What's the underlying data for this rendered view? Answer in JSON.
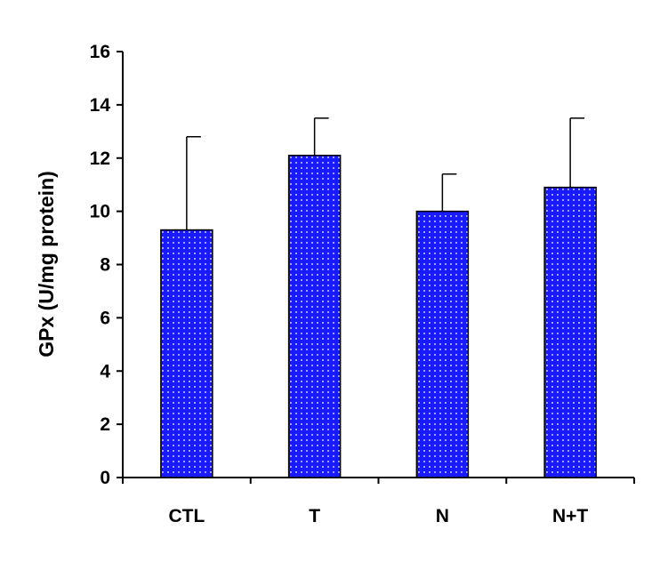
{
  "chart_data": {
    "type": "bar",
    "title": "",
    "xlabel": "",
    "ylabel": "GPx (U/mg protein)",
    "categories": [
      "CTL",
      "T",
      "N",
      "N+T"
    ],
    "values": [
      9.3,
      12.1,
      10.0,
      10.9
    ],
    "error_upper": [
      12.8,
      13.5,
      11.4,
      13.5
    ],
    "ylim": [
      0,
      16
    ],
    "yticks": [
      "0",
      "2",
      "4",
      "6",
      "8",
      "10",
      "12",
      "14",
      "16"
    ],
    "grid": false,
    "bar_fill": "#1a1aff",
    "bar_dot_color": "#ffffff",
    "bar_pattern": "dotted"
  }
}
